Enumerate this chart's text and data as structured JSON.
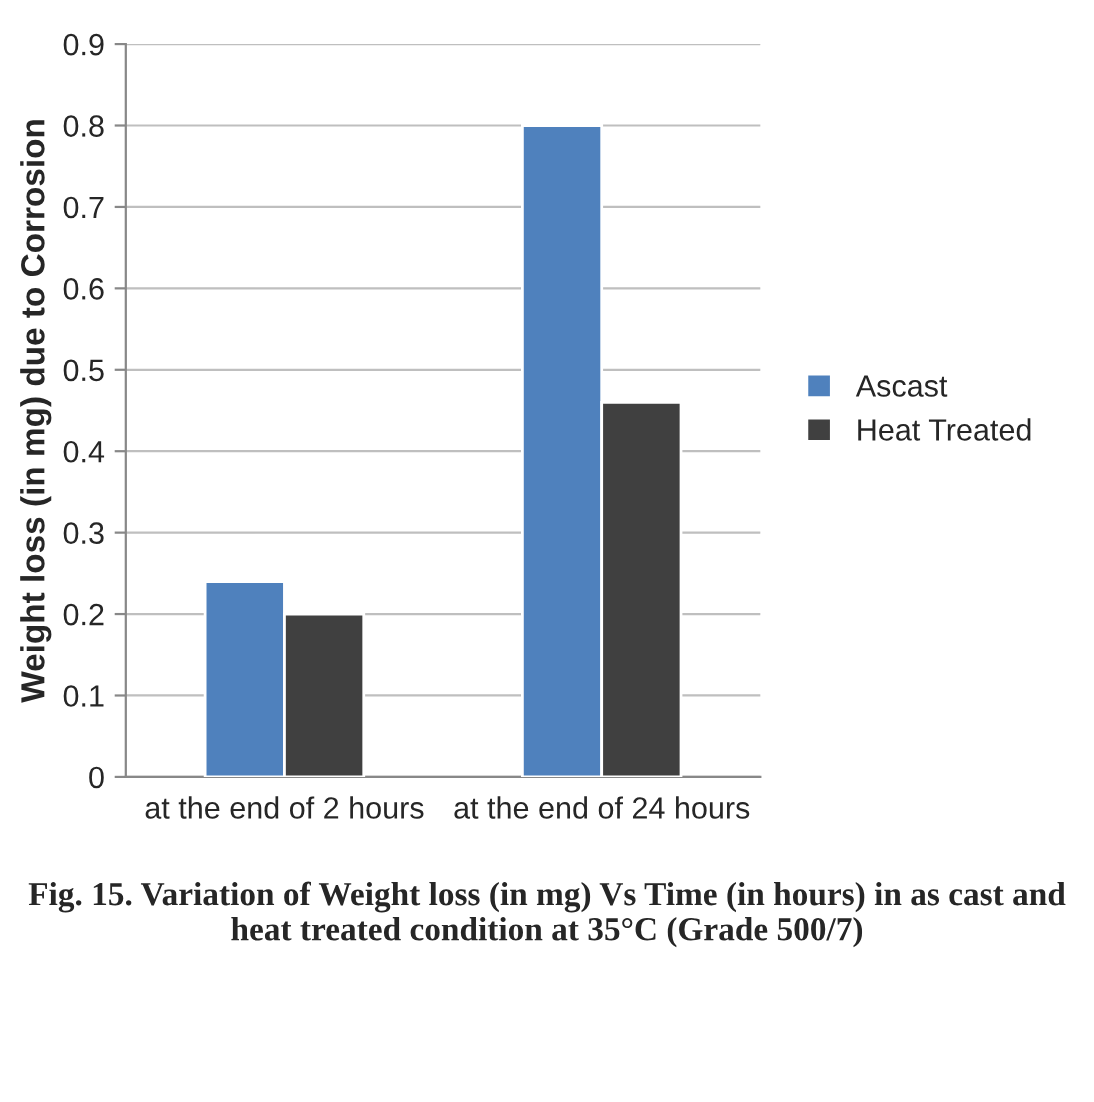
{
  "chart_data": {
    "type": "bar",
    "categories": [
      "at the end of 2 hours",
      "at the end of 24 hours"
    ],
    "series": [
      {
        "name": "Ascast",
        "color": "#4f81bd",
        "values": [
          0.24,
          0.8
        ]
      },
      {
        "name": "Heat Treated",
        "color": "#404040",
        "values": [
          0.2,
          0.46
        ]
      }
    ],
    "ylabel": "Weight loss (in mg) due to Corrosion",
    "ylim": [
      0,
      0.9
    ],
    "yticks": [
      0,
      0.1,
      0.2,
      0.3,
      0.4,
      0.5,
      0.6,
      0.7,
      0.8,
      0.9
    ],
    "grid": "y",
    "legend": "right",
    "annotations": [
      "Fig. 15. Variation of Weight loss (in mg) Vs Time (in hours) in as cast and heat treated condition at 35°C (Grade 500/7)"
    ]
  }
}
